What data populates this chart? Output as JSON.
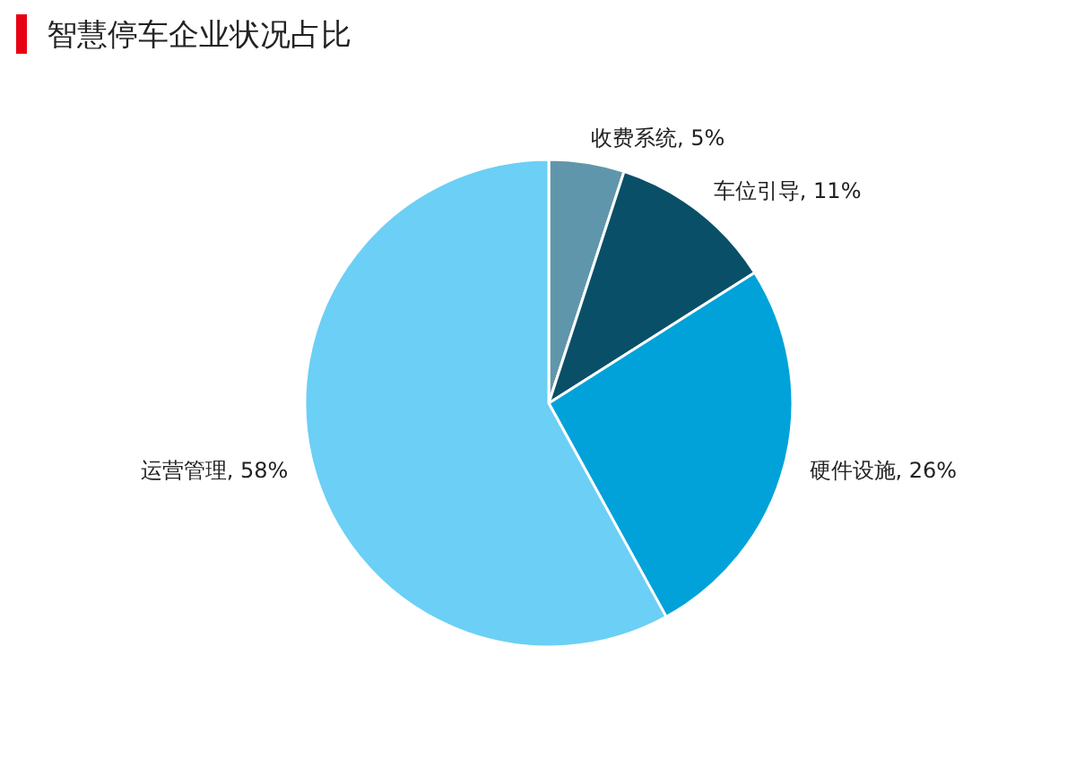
{
  "chart_data": {
    "type": "pie",
    "title": "智慧停车企业状况占比",
    "categories": [
      "收费系统",
      "车位引导",
      "硬件设施",
      "运营管理"
    ],
    "values": [
      5,
      11,
      26,
      58
    ],
    "value_labels": [
      "5%",
      "11%",
      "26%",
      "58%"
    ],
    "colors": [
      "#6096ab",
      "#0a4f68",
      "#00a2d9",
      "#6ccff5"
    ]
  }
}
